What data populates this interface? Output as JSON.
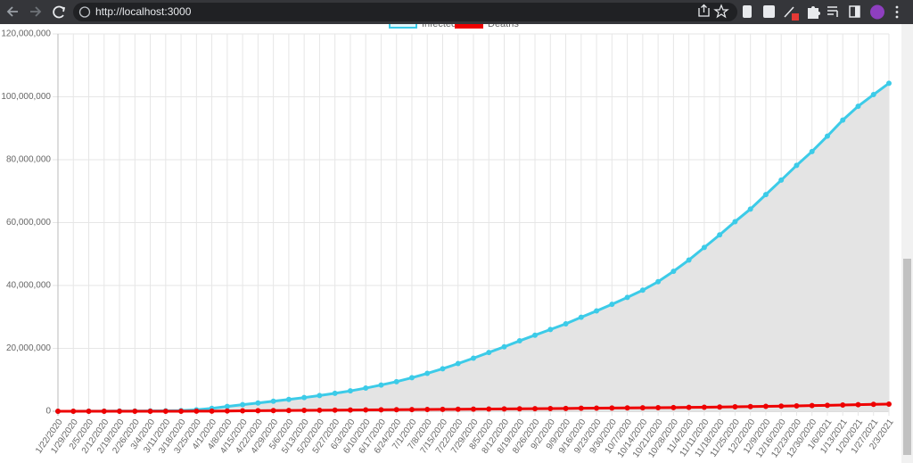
{
  "browser": {
    "url": "http://localhost:3000"
  },
  "chart_data": {
    "type": "line",
    "categories": [
      "1/22/2020",
      "1/29/2020",
      "2/5/2020",
      "2/12/2020",
      "2/19/2020",
      "2/26/2020",
      "3/4/2020",
      "3/11/2020",
      "3/18/2020",
      "3/25/2020",
      "4/1/2020",
      "4/8/2020",
      "4/15/2020",
      "4/22/2020",
      "4/29/2020",
      "5/6/2020",
      "5/13/2020",
      "5/20/2020",
      "5/27/2020",
      "6/3/2020",
      "6/10/2020",
      "6/17/2020",
      "6/24/2020",
      "7/1/2020",
      "7/8/2020",
      "7/15/2020",
      "7/22/2020",
      "7/29/2020",
      "8/5/2020",
      "8/12/2020",
      "8/19/2020",
      "8/26/2020",
      "9/2/2020",
      "9/9/2020",
      "9/16/2020",
      "9/23/2020",
      "9/30/2020",
      "10/7/2020",
      "10/14/2020",
      "10/21/2020",
      "10/28/2020",
      "11/4/2020",
      "11/11/2020",
      "11/18/2020",
      "11/25/2020",
      "12/2/2020",
      "12/9/2020",
      "12/16/2020",
      "12/23/2020",
      "12/30/2020",
      "1/6/2021",
      "1/13/2021",
      "1/20/2021",
      "1/27/2021",
      "2/3/2021"
    ],
    "series": [
      {
        "name": "Infected",
        "color": "#3ccbe8",
        "fill": "#e4e4e4",
        "values": [
          555,
          6166,
          28276,
          45221,
          75641,
          82756,
          95124,
          126214,
          214910,
          467594,
          932605,
          1513358,
          2078605,
          2625000,
          3193000,
          3760000,
          4347000,
          4996000,
          5696000,
          6476000,
          7363000,
          8346000,
          9410000,
          10667000,
          12041000,
          13523000,
          15160000,
          16880000,
          18700000,
          20500000,
          22400000,
          24200000,
          26000000,
          27800000,
          29900000,
          31900000,
          34000000,
          36200000,
          38500000,
          41200000,
          44500000,
          48100000,
          52100000,
          56100000,
          60300000,
          64300000,
          68900000,
          73500000,
          78200000,
          82600000,
          87500000,
          92600000,
          97000000,
          100700000,
          104300000
        ]
      },
      {
        "name": "Deaths",
        "color": "#ee0000",
        "values": [
          17,
          133,
          565,
          1118,
          2122,
          2814,
          3254,
          4615,
          8733,
          21181,
          47173,
          88338,
          137000,
          184000,
          228000,
          264000,
          297000,
          325000,
          355000,
          388000,
          419000,
          450000,
          487000,
          519000,
          551000,
          587000,
          625000,
          666000,
          706000,
          749000,
          790000,
          828000,
          866000,
          902000,
          941000,
          979000,
          1018000,
          1056000,
          1092000,
          1132000,
          1178000,
          1231000,
          1284000,
          1343000,
          1413000,
          1486000,
          1562000,
          1639000,
          1716000,
          1795000,
          1888000,
          1987000,
          2083000,
          2182000,
          2267000
        ]
      }
    ],
    "ylim": [
      0,
      120000000
    ],
    "yticks": [
      {
        "value": 0,
        "label": "0"
      },
      {
        "value": 20000000,
        "label": "20,000,000"
      },
      {
        "value": 40000000,
        "label": "40,000,000"
      },
      {
        "value": 60000000,
        "label": "60,000,000"
      },
      {
        "value": 80000000,
        "label": "80,000,000"
      },
      {
        "value": 100000000,
        "label": "100,000,000"
      },
      {
        "value": 120000000,
        "label": "120,000,000"
      }
    ],
    "grid": true,
    "legend": "top"
  }
}
